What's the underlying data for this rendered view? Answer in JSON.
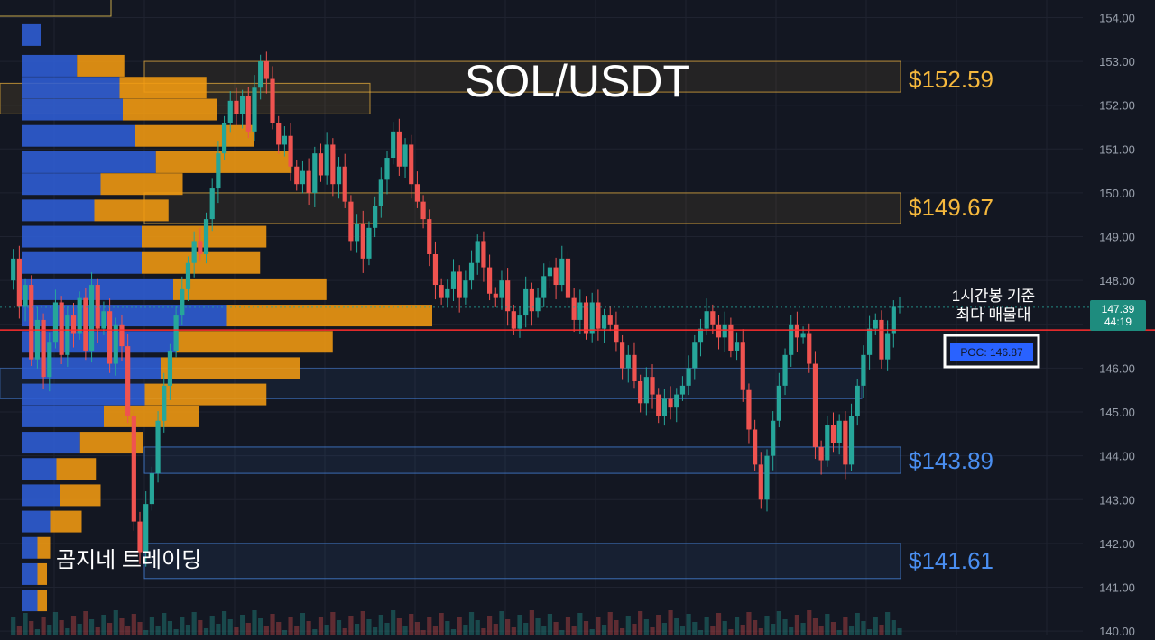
{
  "title": "SOL/USDT",
  "watermark": "곰지네 트레이딩",
  "colors": {
    "background": "#131722",
    "grid": "#1f2330",
    "up": "#26a69a",
    "down": "#ef5350",
    "resistance": "#f5b83d",
    "support": "#4a8ef0",
    "poc_line": "#ff2d2d",
    "profile_buy": "#2f5fd6",
    "profile_sell": "#f29b11",
    "current_price_bg": "#1e8c7e"
  },
  "annotation": {
    "line1": "1시간봉 기준",
    "line2": "최다 매물대"
  },
  "current_price": {
    "value": "147.39",
    "countdown": "44:19"
  },
  "poc": {
    "label": "POC: 146.87",
    "value": 146.87
  },
  "chart_data": {
    "type": "candlestick",
    "symbol": "SOL/USDT",
    "timeframe_note": "1시간봉",
    "y_ticks": [
      "154.00",
      "153.00",
      "152.00",
      "151.00",
      "150.00",
      "149.00",
      "148.00",
      "147.00",
      "146.00",
      "145.00",
      "144.00",
      "143.00",
      "142.00",
      "141.00",
      "140.00"
    ],
    "ylim": [
      139.9,
      154.4
    ],
    "levels": [
      {
        "label": "$152.59",
        "value": 152.59,
        "kind": "resistance",
        "zone": [
          152.3,
          153.0
        ]
      },
      {
        "label": "$149.67",
        "value": 149.67,
        "kind": "resistance",
        "zone": [
          149.3,
          150.0
        ]
      },
      {
        "label": "$143.89",
        "value": 143.89,
        "kind": "support",
        "zone": [
          143.6,
          144.2
        ]
      },
      {
        "label": "$141.61",
        "value": 141.61,
        "kind": "support",
        "zone": [
          141.2,
          142.0
        ]
      }
    ],
    "closes": [
      148.0,
      148.5,
      147.4,
      147.9,
      146.2,
      147.1,
      145.8,
      146.6,
      147.5,
      146.3,
      147.2,
      146.8,
      147.6,
      146.4,
      147.9,
      146.9,
      147.3,
      146.1,
      147.0,
      146.5,
      144.9,
      142.5,
      141.8,
      142.9,
      143.6,
      144.8,
      145.6,
      146.4,
      147.2,
      147.8,
      148.4,
      148.9,
      148.6,
      149.4,
      150.1,
      150.9,
      151.6,
      152.1,
      151.8,
      152.2,
      151.4,
      152.4,
      153.0,
      152.6,
      151.6,
      151.1,
      151.3,
      150.6,
      150.2,
      150.5,
      150.0,
      150.9,
      150.4,
      151.1,
      150.2,
      150.6,
      149.8,
      148.9,
      149.3,
      148.5,
      149.2,
      149.7,
      150.3,
      150.8,
      151.4,
      150.6,
      151.1,
      150.2,
      149.8,
      149.4,
      148.6,
      147.9,
      147.6,
      147.8,
      148.2,
      147.6,
      148.0,
      148.4,
      148.9,
      148.3,
      147.7,
      147.6,
      148.0,
      147.3,
      146.9,
      147.2,
      147.8,
      147.3,
      147.6,
      148.1,
      148.3,
      147.9,
      148.5,
      147.6,
      147.1,
      147.5,
      146.8,
      147.5,
      146.9,
      147.2,
      147.0,
      146.6,
      146.0,
      146.3,
      145.7,
      145.2,
      145.8,
      145.4,
      144.9,
      145.3,
      145.1,
      145.4,
      145.6,
      146.0,
      146.6,
      146.9,
      147.3,
      147.0,
      146.7,
      147.0,
      146.4,
      146.6,
      145.5,
      144.6,
      143.8,
      143.0,
      144.0,
      144.8,
      145.6,
      146.3,
      147.0,
      146.7,
      146.8,
      146.1,
      144.2,
      143.9,
      144.7,
      144.3,
      144.8,
      143.8,
      144.9,
      145.6,
      146.3,
      146.9,
      147.1,
      146.2,
      146.8,
      147.4,
      147.4
    ],
    "volume_profile": [
      {
        "price": 153.6,
        "buy": 0.12,
        "sell": 0.0
      },
      {
        "price": 152.9,
        "buy": 0.35,
        "sell": 0.3
      },
      {
        "price": 152.4,
        "buy": 0.62,
        "sell": 0.55
      },
      {
        "price": 151.9,
        "buy": 0.64,
        "sell": 0.6
      },
      {
        "price": 151.3,
        "buy": 0.72,
        "sell": 0.75
      },
      {
        "price": 150.7,
        "buy": 0.85,
        "sell": 0.86
      },
      {
        "price": 150.2,
        "buy": 0.5,
        "sell": 0.52
      },
      {
        "price": 149.6,
        "buy": 0.46,
        "sell": 0.47
      },
      {
        "price": 149.0,
        "buy": 0.76,
        "sell": 0.79
      },
      {
        "price": 148.4,
        "buy": 0.76,
        "sell": 0.75
      },
      {
        "price": 147.8,
        "buy": 0.96,
        "sell": 0.97
      },
      {
        "price": 147.2,
        "buy": 1.3,
        "sell": 1.3
      },
      {
        "price": 146.6,
        "buy": 0.98,
        "sell": 0.99
      },
      {
        "price": 146.0,
        "buy": 0.88,
        "sell": 0.88
      },
      {
        "price": 145.4,
        "buy": 0.78,
        "sell": 0.77
      },
      {
        "price": 144.9,
        "buy": 0.52,
        "sell": 0.6
      },
      {
        "price": 144.3,
        "buy": 0.37,
        "sell": 0.4
      },
      {
        "price": 143.7,
        "buy": 0.22,
        "sell": 0.25
      },
      {
        "price": 143.1,
        "buy": 0.24,
        "sell": 0.26
      },
      {
        "price": 142.5,
        "buy": 0.18,
        "sell": 0.2
      },
      {
        "price": 141.9,
        "buy": 0.1,
        "sell": 0.08
      },
      {
        "price": 141.3,
        "buy": 0.1,
        "sell": 0.06
      },
      {
        "price": 140.7,
        "buy": 0.1,
        "sell": 0.06
      }
    ]
  }
}
